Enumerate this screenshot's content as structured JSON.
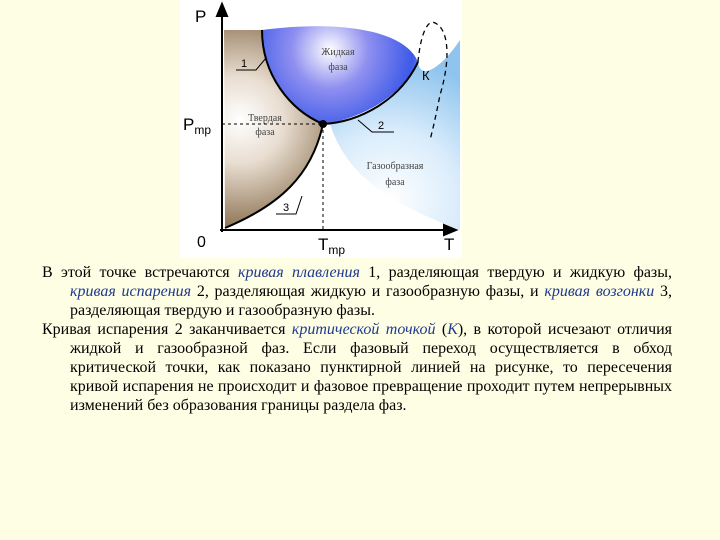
{
  "diagram": {
    "y_axis_label": "P",
    "y_mark_label": {
      "main": "P",
      "sub": "mp"
    },
    "origin_label": "0",
    "x_axis_label": "T",
    "x_mark_label": {
      "main": "T",
      "sub": "mp"
    },
    "curve_labels": [
      "1",
      "2",
      "3"
    ],
    "critical_point_label": "К",
    "regions": [
      {
        "lines": [
          "Жидкая",
          "фаза"
        ]
      },
      {
        "lines": [
          "Твердая",
          "фаза"
        ]
      },
      {
        "lines": [
          "Газообразная",
          "фаза"
        ]
      }
    ]
  },
  "paragraphs": [
    [
      {
        "text": "В этой точке встречаются "
      },
      {
        "text": "кривая плавления",
        "style": "italic"
      },
      {
        "text": " 1, разделяющая твердую и жидкую фазы, "
      },
      {
        "text": "кривая испарения",
        "style": "italic"
      },
      {
        "text": " 2, разделяющая жидкую и газообразную фазы, и "
      },
      {
        "text": "кривая возгонки",
        "style": "italic"
      },
      {
        "text": " 3, разделяющая твердую и газообразную фазы."
      }
    ],
    [
      {
        "text": "Кривая испарения 2 заканчивается "
      },
      {
        "text": "критической точкой",
        "style": "italic"
      },
      {
        "text": " ("
      },
      {
        "text": "К",
        "style": "italic"
      },
      {
        "text": "), в которой исчезают отличия жидкой и газообразной фаз. Если фазовый переход осуществляется в обход критической точки, как показано пунктирной линией на рисунке, то пересечения кривой испарения не происходит и фазовое превращение проходит путем непрерывных изменений без образования границы раздела фаз."
      }
    ]
  ]
}
